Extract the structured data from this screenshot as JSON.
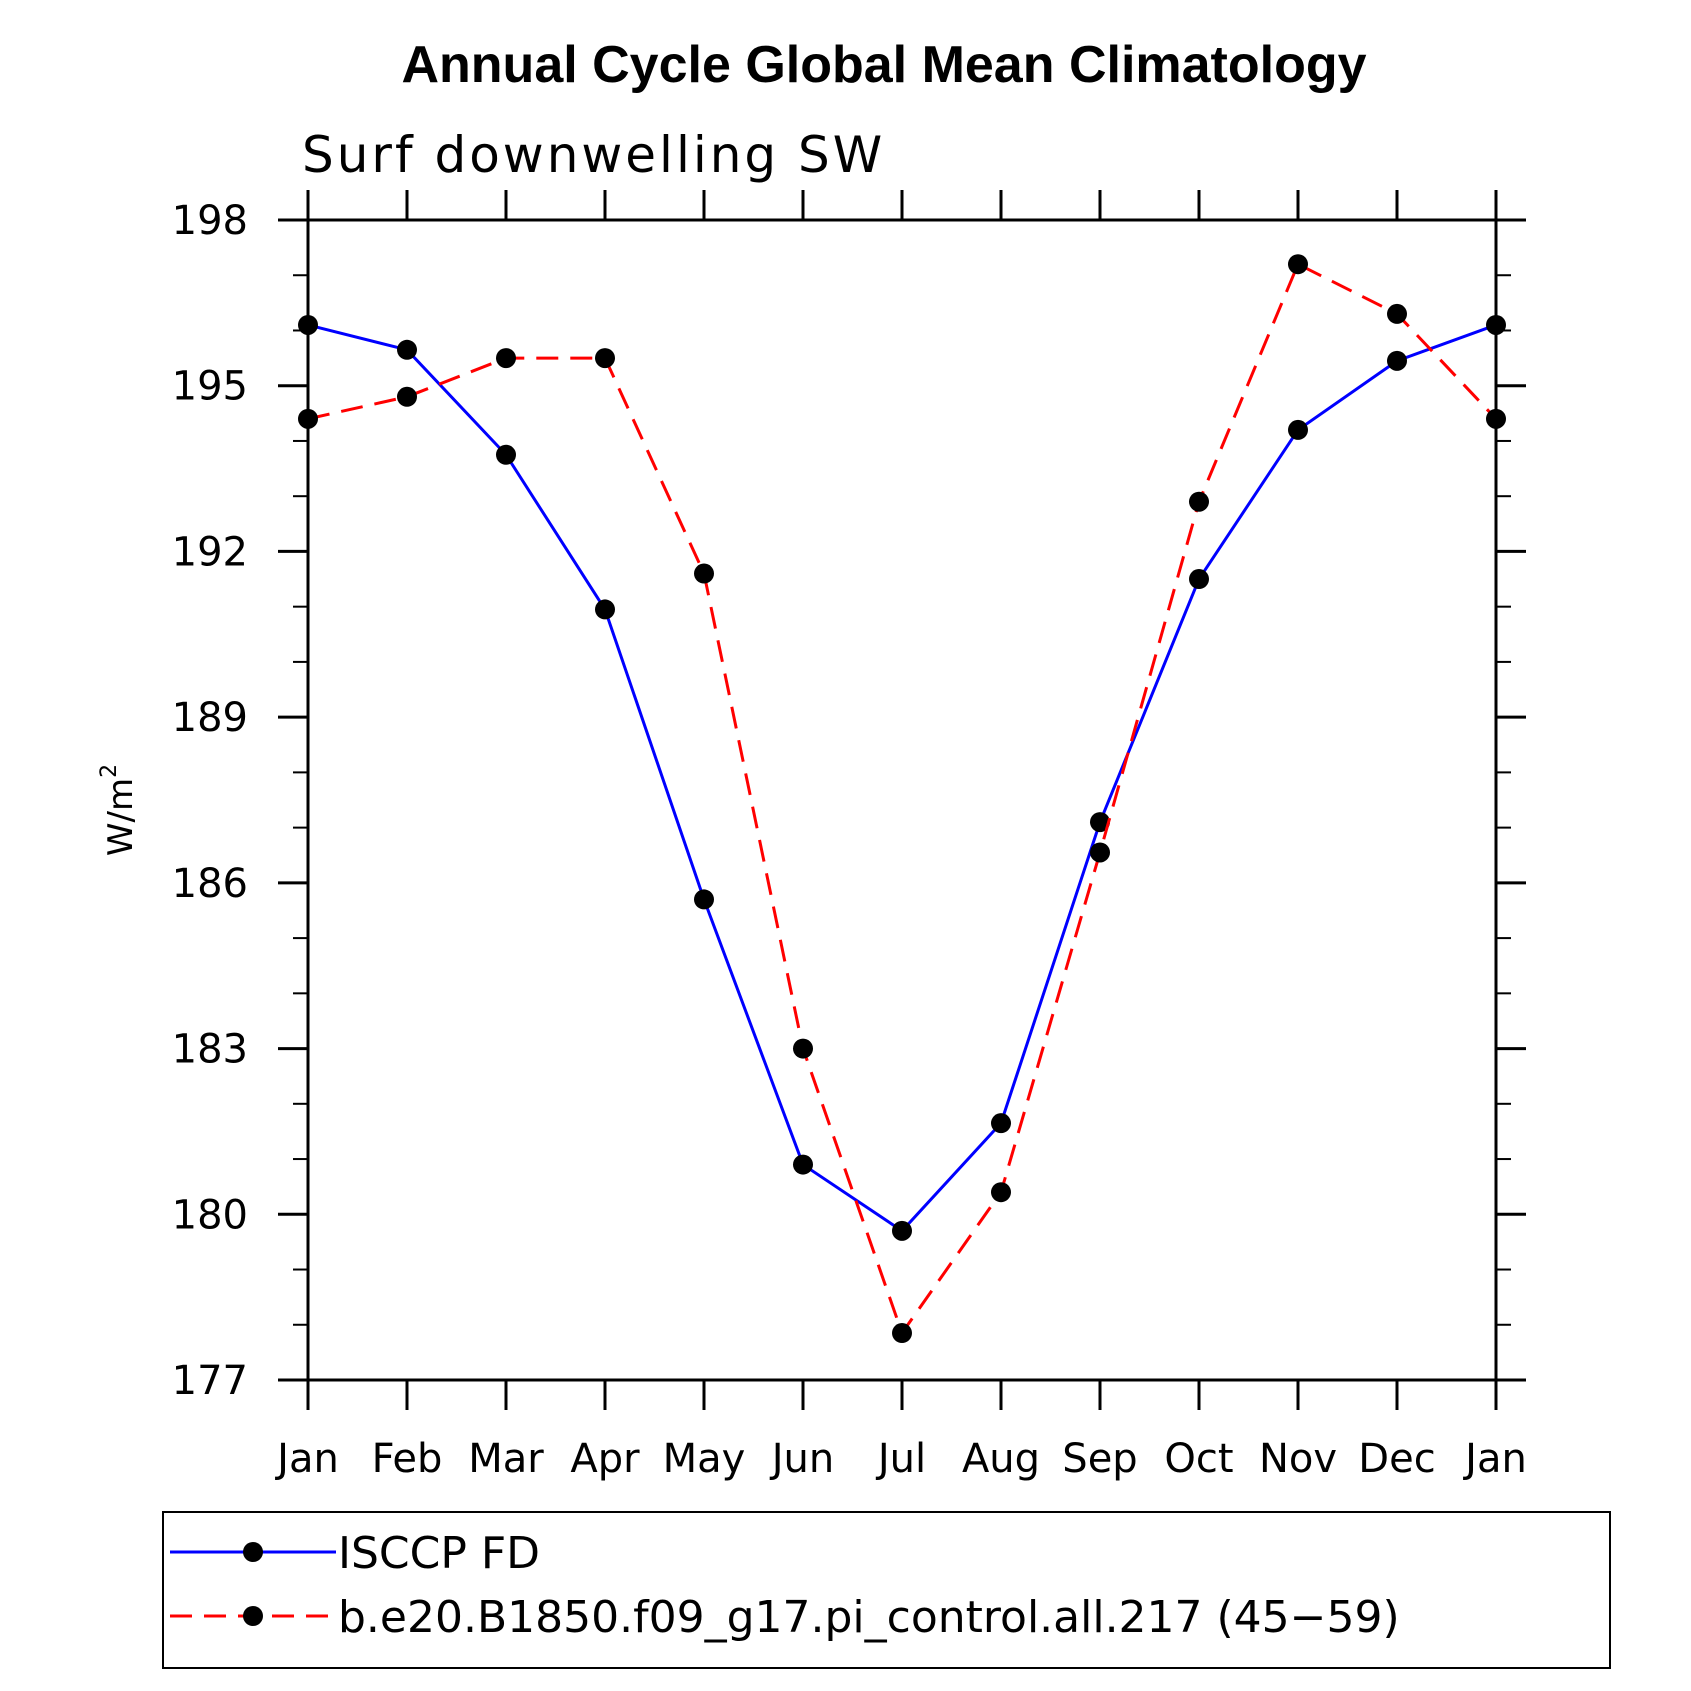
{
  "chart_data": {
    "type": "line",
    "title": "Annual Cycle Global Mean Climatology",
    "subtitle": "Surf downwelling SW",
    "ylabel": "W/m",
    "ylabel_superscript": "2",
    "xlabel": "",
    "categories": [
      "Jan",
      "Feb",
      "Mar",
      "Apr",
      "May",
      "Jun",
      "Jul",
      "Aug",
      "Sep",
      "Oct",
      "Nov",
      "Dec",
      "Jan"
    ],
    "ylim": [
      177,
      198
    ],
    "yticks": [
      177,
      180,
      183,
      186,
      189,
      192,
      195,
      198
    ],
    "grid": false,
    "legend_position": "bottom",
    "series": [
      {
        "name": "ISCCP FD",
        "color": "#0000ff",
        "dash": "solid",
        "marker": "filled-circle",
        "values": [
          196.1,
          195.65,
          193.75,
          190.95,
          185.7,
          180.9,
          179.7,
          181.65,
          187.1,
          191.5,
          194.2,
          195.45,
          196.1
        ]
      },
      {
        "name": "b.e20.B1850.f09_g17.pi_control.all.217 (45−59)",
        "color": "#ff0000",
        "dash": "dashed",
        "marker": "filled-circle",
        "values": [
          194.4,
          194.8,
          195.5,
          195.5,
          191.6,
          183.0,
          177.85,
          180.4,
          186.55,
          192.9,
          197.2,
          196.3,
          194.4
        ]
      }
    ]
  }
}
